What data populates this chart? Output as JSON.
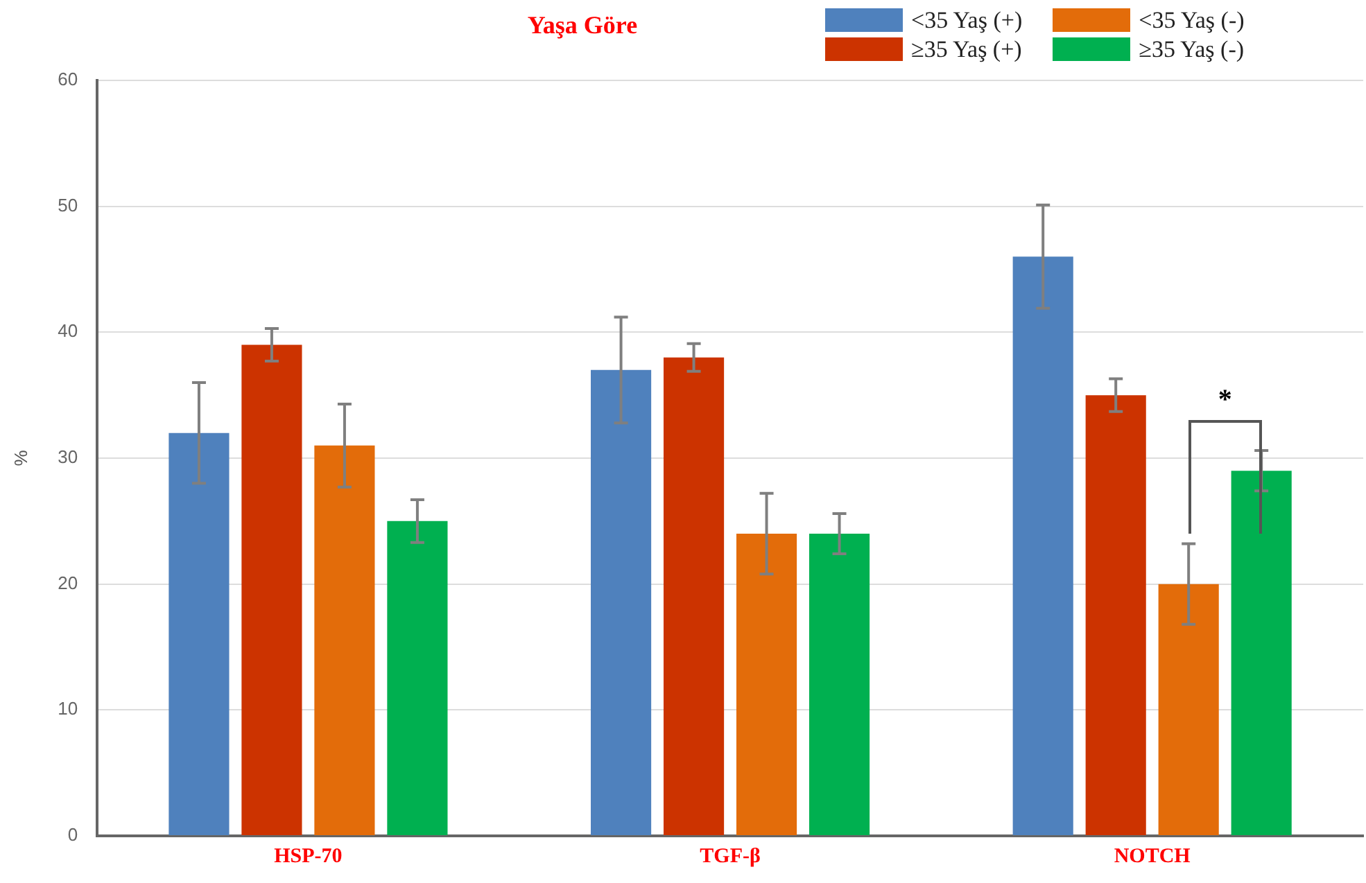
{
  "chart_data": {
    "type": "bar",
    "title": "Yaşa Göre",
    "ylabel": "%",
    "categories": [
      "HSP-70",
      "TGF-β",
      "NOTCH"
    ],
    "series": [
      {
        "name": "<35 Yaş (+)",
        "color": "#4f81bd",
        "values": [
          32,
          37,
          46
        ],
        "errors": [
          4,
          4.2,
          4.1
        ]
      },
      {
        "name": "≥35 Yaş (+)",
        "color": "#cc3300",
        "values": [
          39,
          38,
          35
        ],
        "errors": [
          1.3,
          1.1,
          1.3
        ]
      },
      {
        "name": "<35 Yaş (-)",
        "color": "#e36c0a",
        "values": [
          31,
          24,
          20
        ],
        "errors": [
          3.3,
          3.2,
          3.2
        ]
      },
      {
        "name": "≥35 Yaş (-)",
        "color": "#00b050",
        "values": [
          25,
          24,
          29
        ],
        "errors": [
          1.7,
          1.6,
          1.6
        ]
      }
    ],
    "ylim": [
      0,
      60
    ],
    "yticks": [
      0,
      10,
      20,
      30,
      40,
      50,
      60
    ],
    "grid": "y",
    "legend": "top right",
    "annotations": [
      {
        "text": "*",
        "x": "NOTCH",
        "y": 33
      }
    ]
  }
}
